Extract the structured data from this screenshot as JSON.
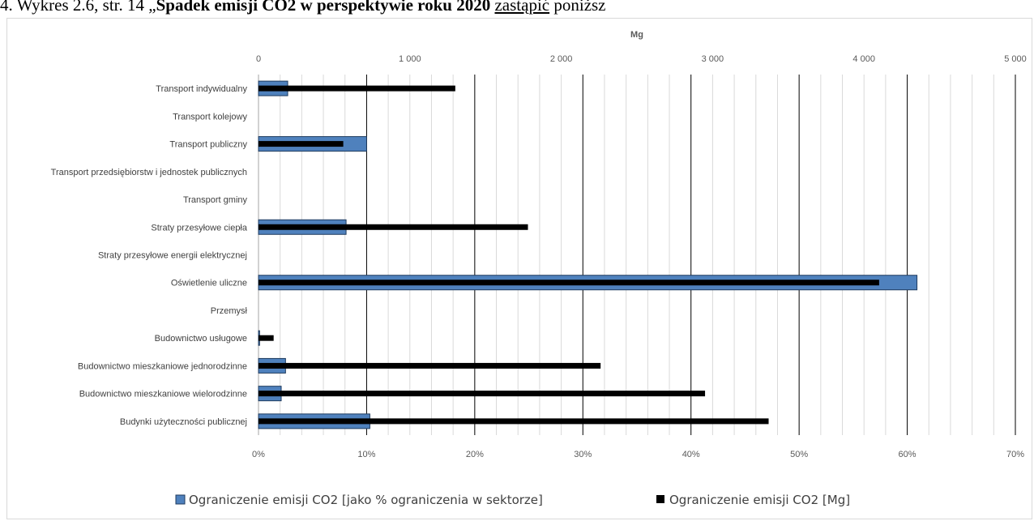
{
  "document": {
    "line_prefix": "4. Wykres 2.6, str. 14 „",
    "line_bold": "Spadek emisji CO2 w perspektywie roku 2020",
    "line_underlined": "zastąpić",
    "line_suffix": " poniższ"
  },
  "chart_data": {
    "type": "bar",
    "orientation": "horizontal",
    "top_axis_title": "Mg",
    "categories": [
      "Transport indywidualny",
      "Transport kolejowy",
      "Transport publiczny",
      "Transport przedsiębiorstw i jednostek publicznych",
      "Transport gminy",
      "Straty przesyłowe ciepła",
      "Straty przesyłowe energii elektrycznej",
      "Oświetlenie uliczne",
      "Przemysł",
      "Budownictwo usługowe",
      "Budownictwo mieszkaniowe jednorodzinne",
      "Budownictwo mieszkaniowe wielorodzinne",
      "Budynki użyteczności publicznej"
    ],
    "series": [
      {
        "name": "Ograniczenie emisji CO2 [jako % ograniczenia w sektorze]",
        "axis": "bottom",
        "unit": "%",
        "color": "#4f81bd",
        "values": [
          2.7,
          0,
          10.0,
          0,
          0,
          8.1,
          0,
          60.9,
          0,
          0.1,
          2.5,
          2.1,
          10.3
        ]
      },
      {
        "name": "Ograniczenie emisji CO2 [Mg]",
        "axis": "top",
        "unit": "Mg",
        "color": "#000000",
        "values": [
          1300,
          0,
          560,
          0,
          0,
          1780,
          0,
          4100,
          0,
          100,
          2260,
          2950,
          3370
        ]
      }
    ],
    "top_axis": {
      "range": [
        0,
        5000
      ],
      "ticks": [
        "0",
        "1 000",
        "2 000",
        "3 000",
        "4 000",
        "5 000"
      ],
      "values": [
        0,
        1000,
        2000,
        3000,
        4000,
        5000
      ]
    },
    "bottom_axis": {
      "range": [
        0,
        70
      ],
      "ticks": [
        "0%",
        "10%",
        "20%",
        "30%",
        "40%",
        "50%",
        "60%",
        "70%"
      ],
      "values": [
        0,
        10,
        20,
        30,
        40,
        50,
        60,
        70
      ]
    },
    "grid": true,
    "legend_position": "bottom"
  }
}
